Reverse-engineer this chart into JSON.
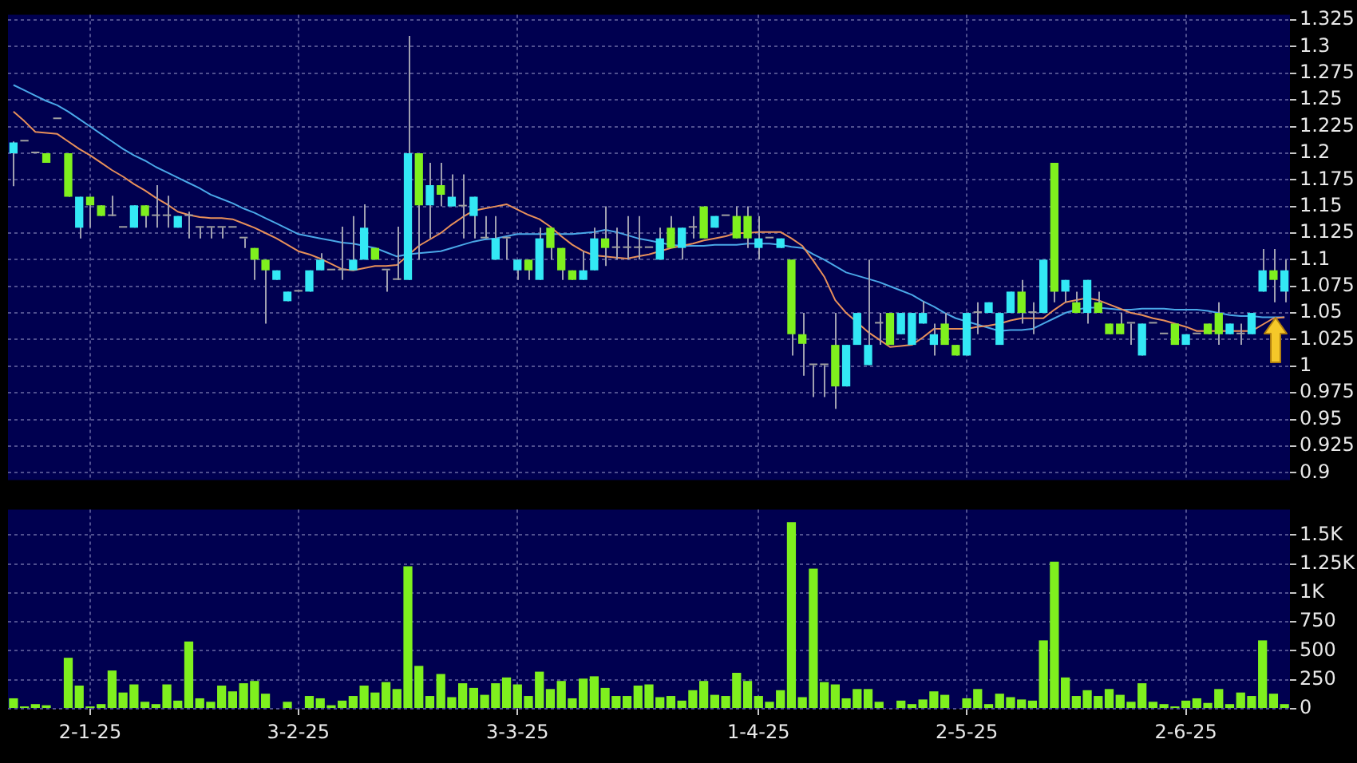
{
  "chart_data": [
    {
      "type": "candlestick",
      "categories": [
        null,
        null,
        null,
        null,
        null,
        null,
        null,
        null,
        null,
        null,
        null,
        null,
        null,
        null,
        null,
        null,
        null,
        null,
        null,
        null,
        null,
        null,
        null,
        null,
        null,
        null,
        null,
        null,
        null,
        null,
        null,
        null,
        null,
        null,
        null,
        null,
        null,
        null,
        null,
        null,
        null,
        null,
        null,
        null,
        null,
        null,
        null,
        null,
        null,
        null,
        null,
        null,
        null,
        null,
        null,
        null,
        null,
        null,
        null,
        null,
        null,
        null,
        null,
        null,
        null,
        null,
        null,
        null,
        null,
        null,
        null,
        null,
        null,
        null,
        null,
        null,
        null,
        null,
        null,
        null,
        null,
        null,
        null,
        null,
        null,
        null,
        null,
        null,
        null,
        null,
        null,
        null,
        null,
        null,
        null,
        null,
        null,
        null,
        null,
        null,
        null,
        null,
        null,
        null,
        null,
        null,
        null,
        null,
        null,
        null,
        null,
        null,
        null,
        null,
        null,
        null,
        null
      ],
      "ohlc": [
        [
          1.2,
          1.211,
          1.169,
          1.21
        ],
        [
          1.211,
          1.211,
          1.211,
          1.211
        ],
        [
          1.2,
          1.2,
          1.2,
          1.2
        ],
        [
          1.2,
          1.2,
          1.191,
          1.191
        ],
        [
          1.232,
          1.232,
          1.232,
          1.232
        ],
        [
          1.2,
          1.2,
          1.159,
          1.159
        ],
        [
          1.13,
          1.159,
          1.12,
          1.159
        ],
        [
          1.159,
          1.159,
          1.13,
          1.151
        ],
        [
          1.151,
          1.151,
          1.141,
          1.141
        ],
        [
          1.141,
          1.16,
          1.141,
          1.141
        ],
        [
          1.13,
          1.13,
          1.13,
          1.13
        ],
        [
          1.13,
          1.151,
          1.13,
          1.151
        ],
        [
          1.151,
          1.151,
          1.13,
          1.141
        ],
        [
          1.141,
          1.17,
          1.13,
          1.141
        ],
        [
          1.141,
          1.16,
          1.13,
          1.141
        ],
        [
          1.13,
          1.141,
          1.13,
          1.141
        ],
        [
          1.141,
          1.145,
          1.12,
          1.141
        ],
        [
          1.13,
          1.13,
          1.12,
          1.13
        ],
        [
          1.13,
          1.13,
          1.12,
          1.13
        ],
        [
          1.13,
          1.13,
          1.12,
          1.13
        ],
        [
          1.13,
          1.13,
          1.13,
          1.13
        ],
        [
          1.12,
          1.12,
          1.111,
          1.12
        ],
        [
          1.111,
          1.111,
          1.081,
          1.1
        ],
        [
          1.1,
          1.1,
          1.04,
          1.09
        ],
        [
          1.081,
          1.09,
          1.081,
          1.09
        ],
        [
          1.061,
          1.07,
          1.061,
          1.07
        ],
        [
          1.07,
          1.07,
          1.07,
          1.07
        ],
        [
          1.07,
          1.09,
          1.07,
          1.09
        ],
        [
          1.09,
          1.106,
          1.09,
          1.1
        ],
        [
          1.09,
          1.09,
          1.09,
          1.09
        ],
        [
          1.09,
          1.131,
          1.081,
          1.09
        ],
        [
          1.09,
          1.141,
          1.09,
          1.1
        ],
        [
          1.1,
          1.152,
          1.1,
          1.13
        ],
        [
          1.111,
          1.111,
          1.1,
          1.1
        ],
        [
          1.09,
          1.09,
          1.07,
          1.09
        ],
        [
          1.081,
          1.131,
          1.081,
          1.081
        ],
        [
          1.081,
          1.31,
          1.081,
          1.2
        ],
        [
          1.2,
          1.2,
          1.1,
          1.151
        ],
        [
          1.151,
          1.191,
          1.12,
          1.17
        ],
        [
          1.17,
          1.191,
          1.15,
          1.161
        ],
        [
          1.15,
          1.18,
          1.15,
          1.159
        ],
        [
          1.15,
          1.18,
          1.12,
          1.15
        ],
        [
          1.141,
          1.159,
          1.12,
          1.159
        ],
        [
          1.12,
          1.141,
          1.12,
          1.12
        ],
        [
          1.1,
          1.141,
          1.1,
          1.12
        ],
        [
          1.12,
          1.12,
          1.1,
          1.12
        ],
        [
          1.09,
          1.1,
          1.081,
          1.1
        ],
        [
          1.1,
          1.1,
          1.081,
          1.09
        ],
        [
          1.081,
          1.13,
          1.081,
          1.12
        ],
        [
          1.13,
          1.13,
          1.1,
          1.111
        ],
        [
          1.111,
          1.111,
          1.081,
          1.09
        ],
        [
          1.09,
          1.09,
          1.081,
          1.081
        ],
        [
          1.081,
          1.108,
          1.081,
          1.09
        ],
        [
          1.09,
          1.13,
          1.09,
          1.12
        ],
        [
          1.12,
          1.15,
          1.094,
          1.111
        ],
        [
          1.111,
          1.13,
          1.1,
          1.111
        ],
        [
          1.111,
          1.141,
          1.1,
          1.111
        ],
        [
          1.111,
          1.141,
          1.1,
          1.111
        ],
        [
          1.111,
          1.111,
          1.111,
          1.111
        ],
        [
          1.1,
          1.13,
          1.1,
          1.12
        ],
        [
          1.13,
          1.141,
          1.111,
          1.111
        ],
        [
          1.111,
          1.13,
          1.1,
          1.13
        ],
        [
          1.13,
          1.141,
          1.12,
          1.13
        ],
        [
          1.15,
          1.15,
          1.12,
          1.12
        ],
        [
          1.13,
          1.141,
          1.13,
          1.141
        ],
        [
          1.141,
          1.141,
          1.141,
          1.141
        ],
        [
          1.141,
          1.15,
          1.12,
          1.12
        ],
        [
          1.141,
          1.15,
          1.111,
          1.12
        ],
        [
          1.111,
          1.141,
          1.1,
          1.12
        ],
        [
          1.12,
          1.12,
          1.12,
          1.12
        ],
        [
          1.111,
          1.12,
          1.111,
          1.12
        ],
        [
          1.1,
          1.1,
          1.01,
          1.03
        ],
        [
          1.03,
          1.05,
          0.991,
          1.021
        ],
        [
          1.001,
          1.001,
          0.971,
          1.001
        ],
        [
          1.001,
          1.001,
          0.971,
          1.001
        ],
        [
          1.02,
          1.05,
          0.96,
          0.981
        ],
        [
          0.981,
          1.02,
          0.981,
          1.02
        ],
        [
          1.02,
          1.05,
          1.02,
          1.05
        ],
        [
          1.001,
          1.1,
          1.001,
          1.02
        ],
        [
          1.04,
          1.05,
          1.02,
          1.04
        ],
        [
          1.05,
          1.05,
          1.02,
          1.02
        ],
        [
          1.03,
          1.05,
          1.03,
          1.05
        ],
        [
          1.02,
          1.05,
          1.02,
          1.05
        ],
        [
          1.04,
          1.061,
          1.04,
          1.05
        ],
        [
          1.02,
          1.04,
          1.01,
          1.03
        ],
        [
          1.04,
          1.05,
          1.02,
          1.02
        ],
        [
          1.02,
          1.02,
          1.01,
          1.01
        ],
        [
          1.01,
          1.05,
          1.01,
          1.05
        ],
        [
          1.05,
          1.06,
          1.03,
          1.05
        ],
        [
          1.05,
          1.06,
          1.05,
          1.06
        ],
        [
          1.02,
          1.05,
          1.02,
          1.05
        ],
        [
          1.05,
          1.07,
          1.05,
          1.07
        ],
        [
          1.07,
          1.081,
          1.04,
          1.05
        ],
        [
          1.05,
          1.06,
          1.03,
          1.05
        ],
        [
          1.05,
          1.1,
          1.05,
          1.1
        ],
        [
          1.191,
          1.191,
          1.06,
          1.07
        ],
        [
          1.07,
          1.081,
          1.06,
          1.081
        ],
        [
          1.06,
          1.07,
          1.05,
          1.05
        ],
        [
          1.05,
          1.081,
          1.04,
          1.081
        ],
        [
          1.06,
          1.07,
          1.05,
          1.05
        ],
        [
          1.04,
          1.04,
          1.03,
          1.03
        ],
        [
          1.04,
          1.05,
          1.03,
          1.03
        ],
        [
          1.04,
          1.04,
          1.02,
          1.04
        ],
        [
          1.01,
          1.04,
          1.01,
          1.04
        ],
        [
          1.04,
          1.04,
          1.04,
          1.04
        ],
        [
          1.03,
          1.03,
          1.03,
          1.03
        ],
        [
          1.04,
          1.04,
          1.02,
          1.02
        ],
        [
          1.02,
          1.03,
          1.02,
          1.03
        ],
        [
          1.03,
          1.03,
          1.03,
          1.03
        ],
        [
          1.04,
          1.04,
          1.03,
          1.03
        ],
        [
          1.05,
          1.06,
          1.02,
          1.03
        ],
        [
          1.03,
          1.04,
          1.03,
          1.04
        ],
        [
          1.03,
          1.04,
          1.02,
          1.03
        ],
        [
          1.03,
          1.05,
          1.03,
          1.05
        ],
        [
          1.07,
          1.11,
          1.07,
          1.09
        ],
        [
          1.09,
          1.11,
          1.06,
          1.081
        ],
        [
          1.07,
          1.1,
          1.06,
          1.09
        ]
      ],
      "colors": [
        "#33e8f5",
        "#a0a0a0",
        "#a0a0a0",
        "#7ff01e",
        "#a0a0a0",
        "#7ff01e",
        "#33e8f5",
        "#7ff01e",
        "#7ff01e",
        "#a0a0a0",
        "#a0a0a0",
        "#33e8f5",
        "#7ff01e",
        "#a0a0a0",
        "#a0a0a0",
        "#33e8f5",
        "#a0a0a0",
        "#a0a0a0",
        "#a0a0a0",
        "#a0a0a0",
        "#a0a0a0",
        "#a0a0a0",
        "#7ff01e",
        "#7ff01e",
        "#33e8f5",
        "#33e8f5",
        "#a0a0a0",
        "#33e8f5",
        "#33e8f5",
        "#a0a0a0",
        "#a0a0a0",
        "#33e8f5",
        "#33e8f5",
        "#7ff01e",
        "#a0a0a0",
        "#a0a0a0",
        "#33e8f5",
        "#7ff01e",
        "#33e8f5",
        "#7ff01e",
        "#33e8f5",
        "#a0a0a0",
        "#33e8f5",
        "#a0a0a0",
        "#33e8f5",
        "#a0a0a0",
        "#33e8f5",
        "#7ff01e",
        "#33e8f5",
        "#7ff01e",
        "#7ff01e",
        "#7ff01e",
        "#33e8f5",
        "#33e8f5",
        "#7ff01e",
        "#a0a0a0",
        "#a0a0a0",
        "#a0a0a0",
        "#a0a0a0",
        "#33e8f5",
        "#7ff01e",
        "#33e8f5",
        "#a0a0a0",
        "#7ff01e",
        "#33e8f5",
        "#a0a0a0",
        "#7ff01e",
        "#7ff01e",
        "#33e8f5",
        "#a0a0a0",
        "#33e8f5",
        "#7ff01e",
        "#7ff01e",
        "#a0a0a0",
        "#a0a0a0",
        "#7ff01e",
        "#33e8f5",
        "#33e8f5",
        "#33e8f5",
        "#a0a0a0",
        "#7ff01e",
        "#33e8f5",
        "#33e8f5",
        "#33e8f5",
        "#33e8f5",
        "#7ff01e",
        "#7ff01e",
        "#33e8f5",
        "#a0a0a0",
        "#33e8f5",
        "#33e8f5",
        "#33e8f5",
        "#7ff01e",
        "#a0a0a0",
        "#33e8f5",
        "#7ff01e",
        "#33e8f5",
        "#7ff01e",
        "#33e8f5",
        "#7ff01e",
        "#7ff01e",
        "#7ff01e",
        "#a0a0a0",
        "#33e8f5",
        "#a0a0a0",
        "#a0a0a0",
        "#7ff01e",
        "#33e8f5",
        "#a0a0a0",
        "#7ff01e",
        "#7ff01e",
        "#33e8f5",
        "#a0a0a0",
        "#33e8f5",
        "#33e8f5",
        "#7ff01e",
        "#33e8f5"
      ],
      "series": [
        {
          "type": "line",
          "color": "#e8905a",
          "values": [
            1.239,
            1.23,
            1.22,
            1.219,
            1.218,
            1.211,
            1.204,
            1.198,
            1.191,
            1.184,
            1.178,
            1.171,
            1.165,
            1.158,
            1.152,
            1.145,
            1.142,
            1.14,
            1.139,
            1.139,
            1.138,
            1.134,
            1.13,
            1.125,
            1.12,
            1.114,
            1.108,
            1.105,
            1.101,
            1.096,
            1.091,
            1.09,
            1.092,
            1.094,
            1.094,
            1.095,
            1.104,
            1.113,
            1.119,
            1.125,
            1.133,
            1.14,
            1.146,
            1.148,
            1.15,
            1.152,
            1.147,
            1.142,
            1.138,
            1.131,
            1.122,
            1.114,
            1.108,
            1.104,
            1.103,
            1.102,
            1.101,
            1.103,
            1.105,
            1.108,
            1.111,
            1.113,
            1.115,
            1.118,
            1.12,
            1.122,
            1.125,
            1.125,
            1.126,
            1.126,
            1.126,
            1.12,
            1.113,
            1.099,
            1.084,
            1.062,
            1.05,
            1.041,
            1.032,
            1.025,
            1.018,
            1.019,
            1.02,
            1.027,
            1.035,
            1.035,
            1.035,
            1.035,
            1.037,
            1.038,
            1.04,
            1.043,
            1.045,
            1.045,
            1.045,
            1.053,
            1.06,
            1.062,
            1.064,
            1.062,
            1.058,
            1.054,
            1.05,
            1.048,
            1.045,
            1.043,
            1.04,
            1.037,
            1.033,
            1.033,
            1.033,
            1.033,
            1.033,
            1.033,
            1.039,
            1.045,
            1.046
          ]
        },
        {
          "type": "line",
          "color": "#4aa8e8",
          "values": [
            1.264,
            1.259,
            1.254,
            1.249,
            1.245,
            1.239,
            1.232,
            1.225,
            1.218,
            1.211,
            1.204,
            1.198,
            1.193,
            1.187,
            1.182,
            1.177,
            1.172,
            1.167,
            1.161,
            1.157,
            1.153,
            1.148,
            1.144,
            1.139,
            1.134,
            1.129,
            1.124,
            1.122,
            1.12,
            1.118,
            1.116,
            1.115,
            1.113,
            1.111,
            1.107,
            1.103,
            1.105,
            1.106,
            1.107,
            1.108,
            1.111,
            1.114,
            1.117,
            1.119,
            1.12,
            1.122,
            1.124,
            1.124,
            1.124,
            1.124,
            1.124,
            1.124,
            1.125,
            1.126,
            1.128,
            1.126,
            1.123,
            1.12,
            1.118,
            1.116,
            1.114,
            1.113,
            1.113,
            1.113,
            1.114,
            1.114,
            1.114,
            1.115,
            1.115,
            1.115,
            1.114,
            1.112,
            1.111,
            1.105,
            1.1,
            1.094,
            1.088,
            1.085,
            1.082,
            1.079,
            1.075,
            1.071,
            1.067,
            1.061,
            1.056,
            1.05,
            1.045,
            1.042,
            1.039,
            1.036,
            1.033,
            1.034,
            1.034,
            1.035,
            1.04,
            1.045,
            1.05,
            1.053,
            1.055,
            1.055,
            1.054,
            1.053,
            1.053,
            1.054,
            1.054,
            1.054,
            1.053,
            1.053,
            1.053,
            1.052,
            1.05,
            1.048,
            1.047,
            1.047,
            1.046,
            1.046,
            1.046
          ]
        }
      ],
      "marker": "none",
      "ylim": [
        0.893,
        1.33
      ],
      "yticks": [
        0.9,
        0.925,
        0.95,
        0.975,
        1,
        1.025,
        1.05,
        1.075,
        1.1,
        1.125,
        1.15,
        1.175,
        1.2,
        1.225,
        1.25,
        1.275,
        1.3,
        1.325
      ],
      "grid": true,
      "tick_labels": "y"
    },
    {
      "type": "bar",
      "categories": [
        null,
        null,
        null,
        null,
        null,
        null,
        null,
        "2-1-25",
        null,
        null,
        null,
        null,
        null,
        null,
        null,
        null,
        null,
        null,
        null,
        null,
        null,
        null,
        null,
        null,
        null,
        null,
        "3-2-25",
        null,
        null,
        null,
        null,
        null,
        null,
        null,
        null,
        null,
        null,
        null,
        null,
        null,
        null,
        null,
        null,
        null,
        null,
        null,
        "3-3-25",
        null,
        null,
        null,
        null,
        null,
        null,
        null,
        null,
        null,
        null,
        null,
        null,
        null,
        null,
        null,
        null,
        null,
        null,
        null,
        null,
        null,
        "1-4-25",
        null,
        null,
        null,
        null,
        null,
        null,
        null,
        null,
        null,
        null,
        null,
        null,
        null,
        null,
        null,
        null,
        null,
        null,
        "2-5-25",
        null,
        null,
        null,
        null,
        null,
        null,
        null,
        null,
        null,
        null,
        null,
        null,
        null,
        null,
        null,
        null,
        null,
        null,
        null,
        "2-6-25",
        null,
        null,
        null,
        null,
        null,
        null,
        null,
        null,
        null
      ],
      "values": [
        90,
        20,
        40,
        30,
        0,
        440,
        200,
        20,
        40,
        330,
        140,
        210,
        60,
        40,
        210,
        70,
        580,
        90,
        60,
        200,
        150,
        220,
        240,
        130,
        null,
        60,
        0,
        110,
        90,
        30,
        70,
        110,
        200,
        140,
        230,
        170,
        1230,
        370,
        110,
        300,
        100,
        220,
        180,
        120,
        220,
        270,
        210,
        110,
        320,
        170,
        240,
        90,
        260,
        280,
        180,
        110,
        110,
        200,
        210,
        100,
        110,
        70,
        160,
        240,
        120,
        110,
        310,
        240,
        110,
        60,
        160,
        1610,
        100,
        1210,
        230,
        210,
        90,
        170,
        170,
        60,
        0,
        70,
        40,
        80,
        150,
        120,
        null,
        90,
        170,
        40,
        130,
        100,
        80,
        70,
        590,
        1270,
        270,
        110,
        160,
        110,
        170,
        120,
        60,
        220,
        60,
        40,
        20,
        70,
        90,
        50,
        170,
        40,
        140,
        110,
        590,
        130,
        40
      ],
      "color": "#7ff01e",
      "ylim": [
        0,
        1720
      ],
      "yticks": [
        0,
        250,
        500,
        750,
        {
          "value": 1000,
          "label": "1K"
        },
        {
          "value": 1250,
          "label": "1.25K"
        },
        {
          "value": 1500,
          "label": "1.5K"
        }
      ],
      "grid": true
    }
  ]
}
